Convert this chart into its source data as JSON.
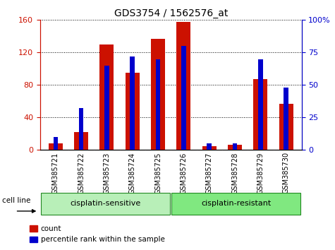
{
  "title": "GDS3754 / 1562576_at",
  "categories": [
    "GSM385721",
    "GSM385722",
    "GSM385723",
    "GSM385724",
    "GSM385725",
    "GSM385726",
    "GSM385727",
    "GSM385728",
    "GSM385729",
    "GSM385730"
  ],
  "count_values": [
    8,
    22,
    130,
    95,
    137,
    158,
    5,
    6,
    87,
    57
  ],
  "percentile_values": [
    10,
    32,
    65,
    72,
    70,
    80,
    5,
    5,
    70,
    48
  ],
  "ylim_left": [
    0,
    160
  ],
  "ylim_right": [
    0,
    100
  ],
  "yticks_left": [
    0,
    40,
    80,
    120,
    160
  ],
  "yticks_right": [
    0,
    25,
    50,
    75,
    100
  ],
  "groups": [
    {
      "label": "cisplatin-sensitive",
      "color": "#b8efb8"
    },
    {
      "label": "cisplatin-resistant",
      "color": "#80e880"
    }
  ],
  "group_label": "cell line",
  "bar_width": 0.55,
  "blue_bar_width": 0.18,
  "red_color": "#cc1100",
  "blue_color": "#0000cc",
  "plot_bg": "#ffffff",
  "legend_labels": [
    "count",
    "percentile rank within the sample"
  ],
  "left_axis_color": "#cc1100",
  "right_axis_color": "#0000cc",
  "tick_bg_color": "#c8c8c8",
  "grid_color": "#000000"
}
